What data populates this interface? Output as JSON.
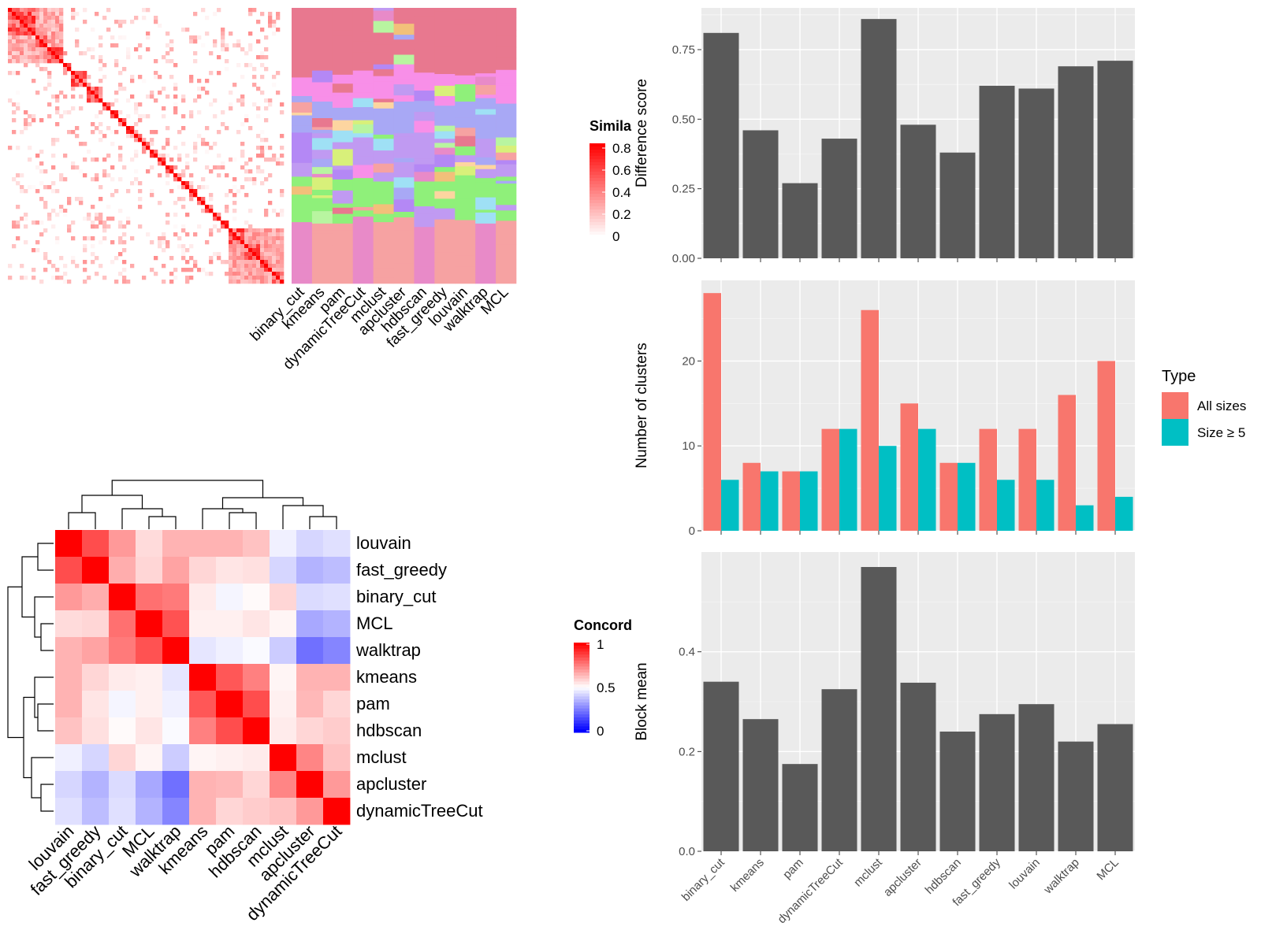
{
  "colors": {
    "panel_bg": "#ebebeb",
    "grid": "#ffffff",
    "bar_dark": "#595959",
    "all_sizes": "#f8766d",
    "size_ge5": "#00bfc4",
    "heat_high": "#ff0000",
    "heat_mid": "#ffffff",
    "heat_low": "#0000ff"
  },
  "similarity_heatmap": {
    "legend_title": "Simila",
    "legend_ticks": [
      "0.8",
      "0.6",
      "0.4",
      "0.2",
      "0"
    ],
    "method_columns": [
      "binary_cut",
      "kmeans",
      "pam",
      "dynamicTreeCut",
      "mclust",
      "apcluster",
      "hdbscan",
      "fast_greedy",
      "louvain",
      "walktrap",
      "MCL"
    ]
  },
  "concordance_heatmap": {
    "legend_title": "Concord",
    "legend_ticks": [
      "1",
      "0.5",
      "0"
    ],
    "rows": [
      "louvain",
      "fast_greedy",
      "binary_cut",
      "MCL",
      "walktrap",
      "kmeans",
      "pam",
      "hdbscan",
      "mclust",
      "apcluster",
      "dynamicTreeCut"
    ],
    "matrix": [
      [
        1.0,
        0.85,
        0.7,
        0.57,
        0.65,
        0.65,
        0.65,
        0.62,
        0.47,
        0.42,
        0.44
      ],
      [
        0.85,
        1.0,
        0.66,
        0.58,
        0.68,
        0.58,
        0.55,
        0.56,
        0.42,
        0.35,
        0.37
      ],
      [
        0.7,
        0.66,
        1.0,
        0.78,
        0.76,
        0.54,
        0.48,
        0.51,
        0.58,
        0.43,
        0.44
      ],
      [
        0.57,
        0.58,
        0.78,
        1.0,
        0.84,
        0.53,
        0.53,
        0.55,
        0.52,
        0.33,
        0.35
      ],
      [
        0.65,
        0.68,
        0.76,
        0.84,
        1.0,
        0.45,
        0.47,
        0.49,
        0.4,
        0.22,
        0.26
      ],
      [
        0.65,
        0.58,
        0.54,
        0.53,
        0.45,
        1.0,
        0.83,
        0.75,
        0.52,
        0.65,
        0.65
      ],
      [
        0.65,
        0.55,
        0.48,
        0.53,
        0.47,
        0.83,
        1.0,
        0.85,
        0.53,
        0.64,
        0.58
      ],
      [
        0.62,
        0.56,
        0.51,
        0.55,
        0.49,
        0.75,
        0.85,
        1.0,
        0.54,
        0.58,
        0.6
      ],
      [
        0.47,
        0.42,
        0.58,
        0.52,
        0.4,
        0.52,
        0.53,
        0.54,
        1.0,
        0.74,
        0.62
      ],
      [
        0.42,
        0.35,
        0.43,
        0.33,
        0.22,
        0.65,
        0.64,
        0.58,
        0.74,
        1.0,
        0.7
      ],
      [
        0.44,
        0.37,
        0.44,
        0.35,
        0.26,
        0.65,
        0.58,
        0.6,
        0.62,
        0.7,
        1.0
      ]
    ]
  },
  "chart_data": [
    {
      "type": "bar",
      "categories": [
        "binary_cut",
        "kmeans",
        "pam",
        "dynamicTreeCut",
        "mclust",
        "apcluster",
        "hdbscan",
        "fast_greedy",
        "louvain",
        "walktrap",
        "MCL"
      ],
      "values": [
        0.81,
        0.46,
        0.27,
        0.43,
        0.86,
        0.48,
        0.38,
        0.62,
        0.61,
        0.69,
        0.71
      ],
      "ylabel": "Difference score",
      "yticks": [
        "0.00",
        "0.25",
        "0.50",
        "0.75"
      ],
      "ylim": [
        0,
        0.9
      ]
    },
    {
      "type": "bar",
      "categories": [
        "binary_cut",
        "kmeans",
        "pam",
        "dynamicTreeCut",
        "mclust",
        "apcluster",
        "hdbscan",
        "fast_greedy",
        "louvain",
        "walktrap",
        "MCL"
      ],
      "series": [
        {
          "name": "All sizes",
          "values": [
            28,
            8,
            7,
            12,
            26,
            15,
            8,
            12,
            12,
            16,
            20
          ]
        },
        {
          "name": "Size ≥ 5",
          "values": [
            6,
            7,
            7,
            12,
            10,
            12,
            8,
            6,
            6,
            3,
            4
          ]
        }
      ],
      "ylabel": "Number of clusters",
      "yticks": [
        "0",
        "10",
        "20"
      ],
      "ylim": [
        0,
        29.5
      ],
      "legend_title": "Type",
      "legend_position": "right"
    },
    {
      "type": "bar",
      "categories": [
        "binary_cut",
        "kmeans",
        "pam",
        "dynamicTreeCut",
        "mclust",
        "apcluster",
        "hdbscan",
        "fast_greedy",
        "louvain",
        "walktrap",
        "MCL"
      ],
      "values": [
        0.34,
        0.265,
        0.175,
        0.325,
        0.57,
        0.338,
        0.24,
        0.275,
        0.295,
        0.22,
        0.255
      ],
      "ylabel": "Block mean",
      "yticks": [
        "0.0",
        "0.2",
        "0.4"
      ],
      "ylim": [
        0,
        0.6
      ]
    }
  ]
}
